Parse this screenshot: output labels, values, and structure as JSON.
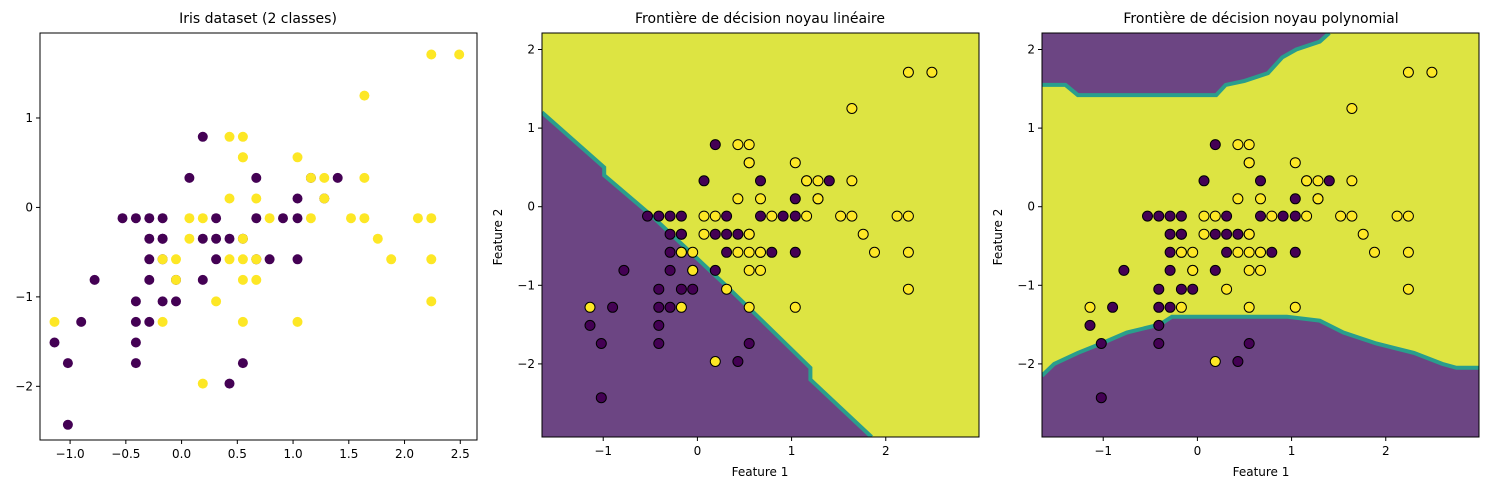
{
  "chart_data": [
    {
      "type": "scatter",
      "title": "Iris dataset (2 classes)",
      "xlabel": "",
      "ylabel": "",
      "xlim": [
        -1.27,
        2.65
      ],
      "ylim": [
        -2.6,
        1.95
      ],
      "xticks": [
        -1.0,
        -0.5,
        0.0,
        0.5,
        1.0,
        1.5,
        2.0,
        2.5
      ],
      "xtick_labels": [
        "−1.0",
        "−0.5",
        "0.0",
        "0.5",
        "1.0",
        "1.5",
        "2.0",
        "2.5"
      ],
      "yticks": [
        -2,
        -1,
        0,
        1
      ],
      "ytick_labels": [
        "−2",
        "−1",
        "0",
        "1"
      ],
      "grid": false,
      "series": [
        {
          "color": "#440154",
          "points": [
            [
              0.19,
              0.79
            ],
            [
              -0.29,
              -0.12
            ],
            [
              -0.29,
              -0.35
            ],
            [
              -0.41,
              -0.12
            ],
            [
              -0.17,
              -0.12
            ],
            [
              0.07,
              0.33
            ],
            [
              0.19,
              -0.35
            ],
            [
              0.31,
              -0.12
            ],
            [
              -0.17,
              -0.35
            ],
            [
              0.31,
              -0.35
            ],
            [
              0.43,
              -0.35
            ],
            [
              -0.29,
              -0.58
            ],
            [
              -0.17,
              -0.58
            ],
            [
              0.19,
              -0.81
            ],
            [
              0.67,
              0.33
            ],
            [
              0.67,
              -0.12
            ],
            [
              0.91,
              -0.12
            ],
            [
              1.04,
              0.1
            ],
            [
              1.04,
              -0.12
            ],
            [
              1.28,
              0.1
            ],
            [
              1.16,
              0.33
            ],
            [
              1.4,
              0.33
            ],
            [
              0.31,
              -0.58
            ],
            [
              0.55,
              -0.35
            ],
            [
              0.67,
              -0.58
            ],
            [
              0.79,
              -0.58
            ],
            [
              1.04,
              -0.58
            ],
            [
              -0.53,
              -0.12
            ],
            [
              -0.05,
              -0.81
            ],
            [
              -0.29,
              -0.81
            ],
            [
              -0.41,
              -1.05
            ],
            [
              -0.41,
              -1.28
            ],
            [
              -0.29,
              -1.28
            ],
            [
              -0.17,
              -1.05
            ],
            [
              -0.05,
              -1.05
            ],
            [
              -0.78,
              -0.81
            ],
            [
              -0.9,
              -1.28
            ],
            [
              -1.14,
              -1.51
            ],
            [
              -1.02,
              -1.74
            ],
            [
              -0.41,
              -1.51
            ],
            [
              -0.41,
              -1.74
            ],
            [
              0.55,
              -1.74
            ],
            [
              0.43,
              -1.97
            ],
            [
              -1.02,
              -2.43
            ],
            [
              -0.17,
              -0.35
            ]
          ]
        },
        {
          "color": "#fde725",
          "points": [
            [
              0.43,
              0.79
            ],
            [
              0.55,
              0.79
            ],
            [
              0.55,
              0.56
            ],
            [
              1.04,
              0.56
            ],
            [
              1.64,
              1.25
            ],
            [
              2.24,
              1.71
            ],
            [
              2.49,
              1.71
            ],
            [
              1.16,
              0.33
            ],
            [
              1.28,
              0.33
            ],
            [
              1.64,
              0.33
            ],
            [
              1.28,
              0.1
            ],
            [
              0.43,
              0.1
            ],
            [
              0.67,
              0.1
            ],
            [
              0.07,
              -0.12
            ],
            [
              0.19,
              -0.12
            ],
            [
              0.79,
              -0.12
            ],
            [
              1.16,
              -0.12
            ],
            [
              1.52,
              -0.12
            ],
            [
              1.64,
              -0.12
            ],
            [
              2.12,
              -0.12
            ],
            [
              2.24,
              -0.12
            ],
            [
              0.07,
              -0.35
            ],
            [
              0.55,
              -0.35
            ],
            [
              1.76,
              -0.35
            ],
            [
              -0.05,
              -0.58
            ],
            [
              0.43,
              -0.58
            ],
            [
              0.55,
              -0.58
            ],
            [
              0.67,
              -0.58
            ],
            [
              1.88,
              -0.58
            ],
            [
              2.24,
              -0.58
            ],
            [
              -0.05,
              -0.81
            ],
            [
              0.55,
              -0.81
            ],
            [
              0.67,
              -0.81
            ],
            [
              0.31,
              -1.05
            ],
            [
              2.24,
              -1.05
            ],
            [
              -1.14,
              -1.28
            ],
            [
              -0.17,
              -1.28
            ],
            [
              0.55,
              -1.28
            ],
            [
              1.04,
              -1.28
            ],
            [
              0.19,
              -1.97
            ],
            [
              0.55,
              0.56
            ],
            [
              -0.17,
              -0.58
            ]
          ]
        }
      ]
    },
    {
      "type": "scatter",
      "title": "Frontière de décision noyau linéaire",
      "xlabel": "Feature 1",
      "ylabel": "Feature 2",
      "xlim": [
        -1.65,
        2.99
      ],
      "ylim": [
        -2.93,
        2.21
      ],
      "xticks": [
        -1,
        0,
        1,
        2
      ],
      "xtick_labels": [
        "−1",
        "0",
        "1",
        "2"
      ],
      "yticks": [
        -2,
        -1,
        0,
        1,
        2
      ],
      "ytick_labels": [
        "−2",
        "−1",
        "0",
        "1",
        "2"
      ],
      "grid": false,
      "region_colors": {
        "class_0": "#6c4583",
        "class_1": "#dde442",
        "edge": "#2a9e8c"
      },
      "boundary": [
        [
          -1.65,
          1.2
        ],
        [
          -0.99,
          0.5
        ],
        [
          -0.99,
          0.4
        ],
        [
          -0.5,
          -0.1
        ],
        [
          0.3,
          -1.0
        ],
        [
          1.2,
          -2.05
        ],
        [
          1.2,
          -2.2
        ],
        [
          1.85,
          -2.93
        ]
      ]
    },
    {
      "type": "scatter",
      "title": "Frontière de décision noyau polynomial",
      "xlabel": "Feature 1",
      "ylabel": "Feature 2",
      "xlim": [
        -1.65,
        2.99
      ],
      "ylim": [
        -2.93,
        2.21
      ],
      "xticks": [
        -1,
        0,
        1,
        2
      ],
      "xtick_labels": [
        "−1",
        "0",
        "1",
        "2"
      ],
      "yticks": [
        -2,
        -1,
        0,
        1,
        2
      ],
      "ytick_labels": [
        "−2",
        "−1",
        "0",
        "1",
        "2"
      ],
      "grid": false,
      "region_colors": {
        "class_0": "#6c4583",
        "class_1": "#dde442",
        "edge": "#2a9e8c"
      },
      "upper_boundary": [
        [
          -1.65,
          1.55
        ],
        [
          -1.4,
          1.55
        ],
        [
          -1.27,
          1.42
        ],
        [
          0.2,
          1.42
        ],
        [
          0.3,
          1.55
        ],
        [
          0.5,
          1.6
        ],
        [
          0.75,
          1.7
        ],
        [
          0.9,
          1.9
        ],
        [
          1.05,
          2.0
        ],
        [
          1.3,
          2.1
        ],
        [
          1.4,
          2.21
        ]
      ],
      "lower_boundary": [
        [
          -1.65,
          -2.15
        ],
        [
          -1.52,
          -2.0
        ],
        [
          -1.27,
          -1.86
        ],
        [
          -1.02,
          -1.74
        ],
        [
          -0.75,
          -1.6
        ],
        [
          -0.4,
          -1.5
        ],
        [
          -0.27,
          -1.4
        ],
        [
          0.2,
          -1.4
        ],
        [
          0.95,
          -1.4
        ],
        [
          1.3,
          -1.45
        ],
        [
          1.55,
          -1.6
        ],
        [
          1.9,
          -1.74
        ],
        [
          2.3,
          -1.86
        ],
        [
          2.6,
          -2.0
        ],
        [
          2.75,
          -2.05
        ],
        [
          2.99,
          -2.05
        ]
      ]
    }
  ]
}
